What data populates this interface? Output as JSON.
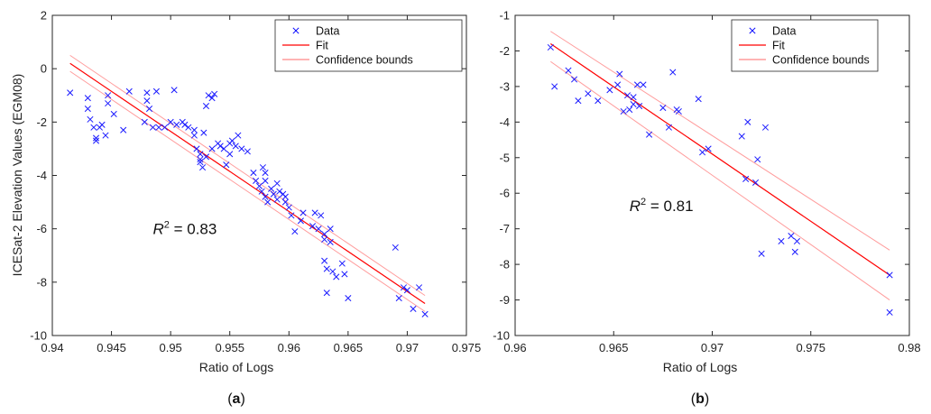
{
  "chart_data": [
    {
      "type": "scatter",
      "panel_label": "a",
      "xlabel": "Ratio of Logs",
      "ylabel": "ICESat-2 Elevation Values (EGM08)",
      "xlim": [
        0.94,
        0.975
      ],
      "ylim": [
        -10,
        2
      ],
      "xticks": [
        0.94,
        0.945,
        0.95,
        0.955,
        0.96,
        0.965,
        0.97,
        0.975
      ],
      "xtick_labels": [
        "0.94",
        "0.945",
        "0.95",
        "0.955",
        "0.96",
        "0.965",
        "0.97",
        "0.975"
      ],
      "yticks": [
        2,
        0,
        -2,
        -4,
        -6,
        -8,
        -10
      ],
      "ytick_labels": [
        "2",
        "0",
        "-2",
        "-4",
        "-6",
        "-8",
        "-10"
      ],
      "annotation": {
        "prefix": "R",
        "superscript": "2",
        "suffix": " = 0.83",
        "x": 0.9485,
        "y": -6.2
      },
      "legend": {
        "position": "top-right",
        "entries": [
          {
            "label": "Data",
            "kind": "marker",
            "color": "#0000ff"
          },
          {
            "label": "Fit",
            "kind": "line",
            "color": "#ff0000"
          },
          {
            "label": "Confidence bounds",
            "kind": "line",
            "color": "#ff8888"
          }
        ]
      },
      "fit": {
        "x": [
          0.9415,
          0.9715
        ],
        "y": [
          0.2,
          -8.8
        ]
      },
      "upper_bound": {
        "x": [
          0.9415,
          0.9715
        ],
        "y": [
          0.5,
          -8.5
        ]
      },
      "lower_bound": {
        "x": [
          0.9415,
          0.9715
        ],
        "y": [
          -0.1,
          -9.1
        ]
      },
      "points": [
        [
          0.9415,
          -0.9
        ],
        [
          0.943,
          -1.1
        ],
        [
          0.943,
          -1.5
        ],
        [
          0.9432,
          -1.9
        ],
        [
          0.9435,
          -2.2
        ],
        [
          0.9437,
          -2.6
        ],
        [
          0.9437,
          -2.7
        ],
        [
          0.944,
          -2.2
        ],
        [
          0.9442,
          -2.1
        ],
        [
          0.9445,
          -2.5
        ],
        [
          0.9447,
          -1.0
        ],
        [
          0.9447,
          -1.3
        ],
        [
          0.9452,
          -1.7
        ],
        [
          0.946,
          -2.3
        ],
        [
          0.9465,
          -0.85
        ],
        [
          0.9478,
          -2.0
        ],
        [
          0.948,
          -0.9
        ],
        [
          0.948,
          -1.2
        ],
        [
          0.9482,
          -1.5
        ],
        [
          0.9485,
          -2.2
        ],
        [
          0.9488,
          -0.85
        ],
        [
          0.949,
          -2.2
        ],
        [
          0.9495,
          -2.2
        ],
        [
          0.95,
          -2.0
        ],
        [
          0.9503,
          -0.8
        ],
        [
          0.9505,
          -2.1
        ],
        [
          0.951,
          -2.0
        ],
        [
          0.9512,
          -2.1
        ],
        [
          0.9515,
          -2.2
        ],
        [
          0.952,
          -2.3
        ],
        [
          0.952,
          -2.5
        ],
        [
          0.9522,
          -3.0
        ],
        [
          0.9525,
          -3.2
        ],
        [
          0.9525,
          -3.4
        ],
        [
          0.9525,
          -3.5
        ],
        [
          0.9527,
          -3.7
        ],
        [
          0.9528,
          -2.4
        ],
        [
          0.953,
          -1.4
        ],
        [
          0.953,
          -3.3
        ],
        [
          0.9532,
          -1.0
        ],
        [
          0.9535,
          -1.1
        ],
        [
          0.9535,
          -3.0
        ],
        [
          0.9537,
          -0.95
        ],
        [
          0.954,
          -2.8
        ],
        [
          0.9542,
          -2.9
        ],
        [
          0.9545,
          -3.0
        ],
        [
          0.9547,
          -3.6
        ],
        [
          0.955,
          -2.8
        ],
        [
          0.955,
          -3.2
        ],
        [
          0.9552,
          -2.7
        ],
        [
          0.9555,
          -2.9
        ],
        [
          0.9557,
          -2.5
        ],
        [
          0.956,
          -3.0
        ],
        [
          0.9565,
          -3.1
        ],
        [
          0.957,
          -3.9
        ],
        [
          0.9572,
          -4.2
        ],
        [
          0.9575,
          -4.4
        ],
        [
          0.9577,
          -4.6
        ],
        [
          0.9578,
          -3.7
        ],
        [
          0.958,
          -3.9
        ],
        [
          0.958,
          -4.2
        ],
        [
          0.958,
          -4.8
        ],
        [
          0.9582,
          -5.0
        ],
        [
          0.9585,
          -4.5
        ],
        [
          0.9587,
          -4.7
        ],
        [
          0.959,
          -4.3
        ],
        [
          0.959,
          -4.9
        ],
        [
          0.9592,
          -4.6
        ],
        [
          0.9595,
          -4.7
        ],
        [
          0.9597,
          -4.8
        ],
        [
          0.9597,
          -5.0
        ],
        [
          0.96,
          -5.2
        ],
        [
          0.9602,
          -5.5
        ],
        [
          0.9605,
          -6.1
        ],
        [
          0.961,
          -5.7
        ],
        [
          0.9612,
          -5.4
        ],
        [
          0.962,
          -5.9
        ],
        [
          0.9622,
          -5.4
        ],
        [
          0.9625,
          -6.0
        ],
        [
          0.9627,
          -5.5
        ],
        [
          0.963,
          -6.2
        ],
        [
          0.963,
          -6.4
        ],
        [
          0.963,
          -7.2
        ],
        [
          0.9632,
          -7.5
        ],
        [
          0.9632,
          -8.4
        ],
        [
          0.9635,
          -6.0
        ],
        [
          0.9635,
          -6.5
        ],
        [
          0.9637,
          -7.6
        ],
        [
          0.964,
          -7.8
        ],
        [
          0.9645,
          -7.3
        ],
        [
          0.9647,
          -7.7
        ],
        [
          0.965,
          -8.6
        ],
        [
          0.969,
          -6.7
        ],
        [
          0.9693,
          -8.6
        ],
        [
          0.9697,
          -8.2
        ],
        [
          0.97,
          -8.3
        ],
        [
          0.9705,
          -9.0
        ],
        [
          0.971,
          -8.2
        ],
        [
          0.9715,
          -9.2
        ]
      ]
    },
    {
      "type": "scatter",
      "panel_label": "b",
      "xlabel": "Ratio of Logs",
      "ylabel": "",
      "xlim": [
        0.96,
        0.98
      ],
      "ylim": [
        -10,
        -1
      ],
      "xticks": [
        0.96,
        0.965,
        0.97,
        0.975,
        0.98
      ],
      "xtick_labels": [
        "0.96",
        "0.965",
        "0.97",
        "0.975",
        "0.98"
      ],
      "yticks": [
        -1,
        -2,
        -3,
        -4,
        -5,
        -6,
        -7,
        -8,
        -9,
        -10
      ],
      "ytick_labels": [
        "-1",
        "-2",
        "-3",
        "-4",
        "-5",
        "-6",
        "-7",
        "-8",
        "-9",
        "-10"
      ],
      "annotation": {
        "prefix": "R",
        "superscript": "2",
        "suffix": " = 0.81",
        "x": 0.9658,
        "y": -6.5
      },
      "legend": {
        "position": "top-right",
        "entries": [
          {
            "label": "Data",
            "kind": "marker",
            "color": "#0000ff"
          },
          {
            "label": "Fit",
            "kind": "line",
            "color": "#ff0000"
          },
          {
            "label": "Confidence bounds",
            "kind": "line",
            "color": "#ff8888"
          }
        ]
      },
      "fit": {
        "x": [
          0.9618,
          0.979
        ],
        "y": [
          -1.8,
          -8.3
        ]
      },
      "upper_bound": {
        "x": [
          0.9618,
          0.979
        ],
        "y": [
          -1.45,
          -7.6
        ]
      },
      "lower_bound": {
        "x": [
          0.9618,
          0.979
        ],
        "y": [
          -2.3,
          -9.0
        ]
      },
      "points": [
        [
          0.9618,
          -1.9
        ],
        [
          0.962,
          -3.0
        ],
        [
          0.9627,
          -2.55
        ],
        [
          0.963,
          -2.8
        ],
        [
          0.9632,
          -3.4
        ],
        [
          0.9637,
          -3.2
        ],
        [
          0.9642,
          -3.4
        ],
        [
          0.9648,
          -3.1
        ],
        [
          0.9652,
          -2.95
        ],
        [
          0.9653,
          -2.65
        ],
        [
          0.9655,
          -3.7
        ],
        [
          0.9657,
          -3.25
        ],
        [
          0.9658,
          -3.65
        ],
        [
          0.966,
          -3.3
        ],
        [
          0.966,
          -3.5
        ],
        [
          0.9662,
          -2.95
        ],
        [
          0.9663,
          -3.55
        ],
        [
          0.9665,
          -2.95
        ],
        [
          0.9668,
          -4.35
        ],
        [
          0.9675,
          -3.6
        ],
        [
          0.9678,
          -4.15
        ],
        [
          0.968,
          -2.6
        ],
        [
          0.9682,
          -3.65
        ],
        [
          0.9683,
          -3.7
        ],
        [
          0.9693,
          -3.35
        ],
        [
          0.9695,
          -4.85
        ],
        [
          0.9698,
          -4.75
        ],
        [
          0.9715,
          -4.4
        ],
        [
          0.9717,
          -5.6
        ],
        [
          0.9718,
          -4.0
        ],
        [
          0.9722,
          -5.7
        ],
        [
          0.9723,
          -5.05
        ],
        [
          0.9725,
          -7.7
        ],
        [
          0.9727,
          -4.15
        ],
        [
          0.9735,
          -7.35
        ],
        [
          0.974,
          -7.2
        ],
        [
          0.9742,
          -7.65
        ],
        [
          0.9743,
          -7.35
        ],
        [
          0.979,
          -8.3
        ],
        [
          0.979,
          -9.35
        ]
      ]
    }
  ]
}
